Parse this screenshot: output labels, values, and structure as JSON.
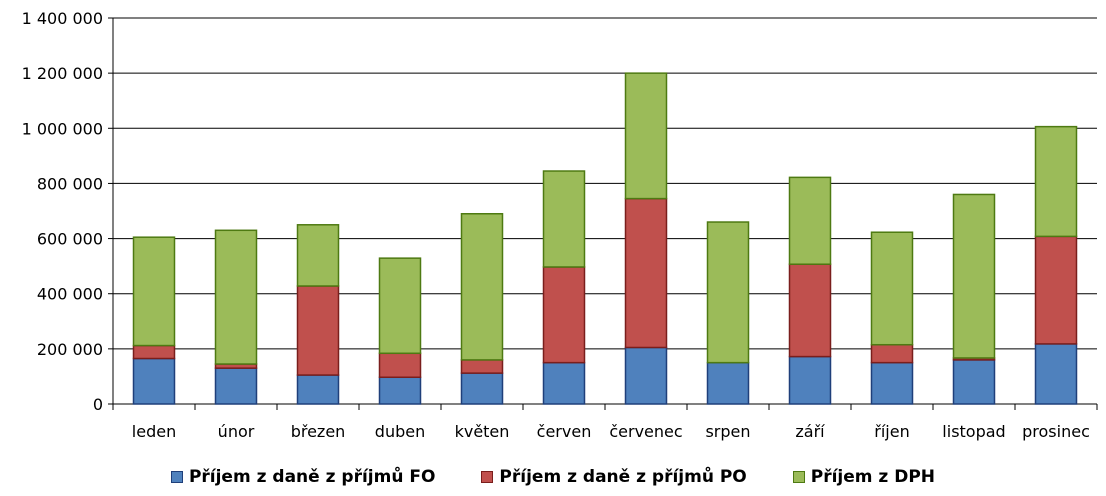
{
  "chart_data": {
    "type": "bar",
    "stacked": true,
    "categories": [
      "leden",
      "únor",
      "březen",
      "duben",
      "květen",
      "červen",
      "červenec",
      "srpen",
      "září",
      "říjen",
      "listopad",
      "prosinec"
    ],
    "series": [
      {
        "name": "Příjem z daně z příjmů FO",
        "color": "#4F81BD",
        "border": "#1F3F7A",
        "values": [
          165000,
          130000,
          105000,
          97000,
          112000,
          150000,
          205000,
          150000,
          172000,
          150000,
          160000,
          218000
        ]
      },
      {
        "name": "Příjem z daně z příjmů PO",
        "color": "#C0504D",
        "border": "#7A1E1C",
        "values": [
          47000,
          15000,
          323000,
          87000,
          48000,
          347000,
          540000,
          0,
          335000,
          65000,
          7000,
          390000
        ]
      },
      {
        "name": "Příjem z DPH",
        "color": "#9BBB59",
        "border": "#4E7A12",
        "values": [
          393000,
          485000,
          222000,
          345000,
          530000,
          348000,
          455000,
          510000,
          315000,
          408000,
          593000,
          398000
        ]
      }
    ],
    "ylim": [
      0,
      1400000
    ],
    "y_ticks": [
      0,
      200000,
      400000,
      600000,
      800000,
      1000000,
      1200000,
      1400000
    ],
    "y_tick_labels": [
      "0",
      "200 000",
      "400 000",
      "600 000",
      "800 000",
      "1 000 000",
      "1 200 000",
      "1 400 000"
    ],
    "grid": true,
    "legend_position": "bottom"
  }
}
